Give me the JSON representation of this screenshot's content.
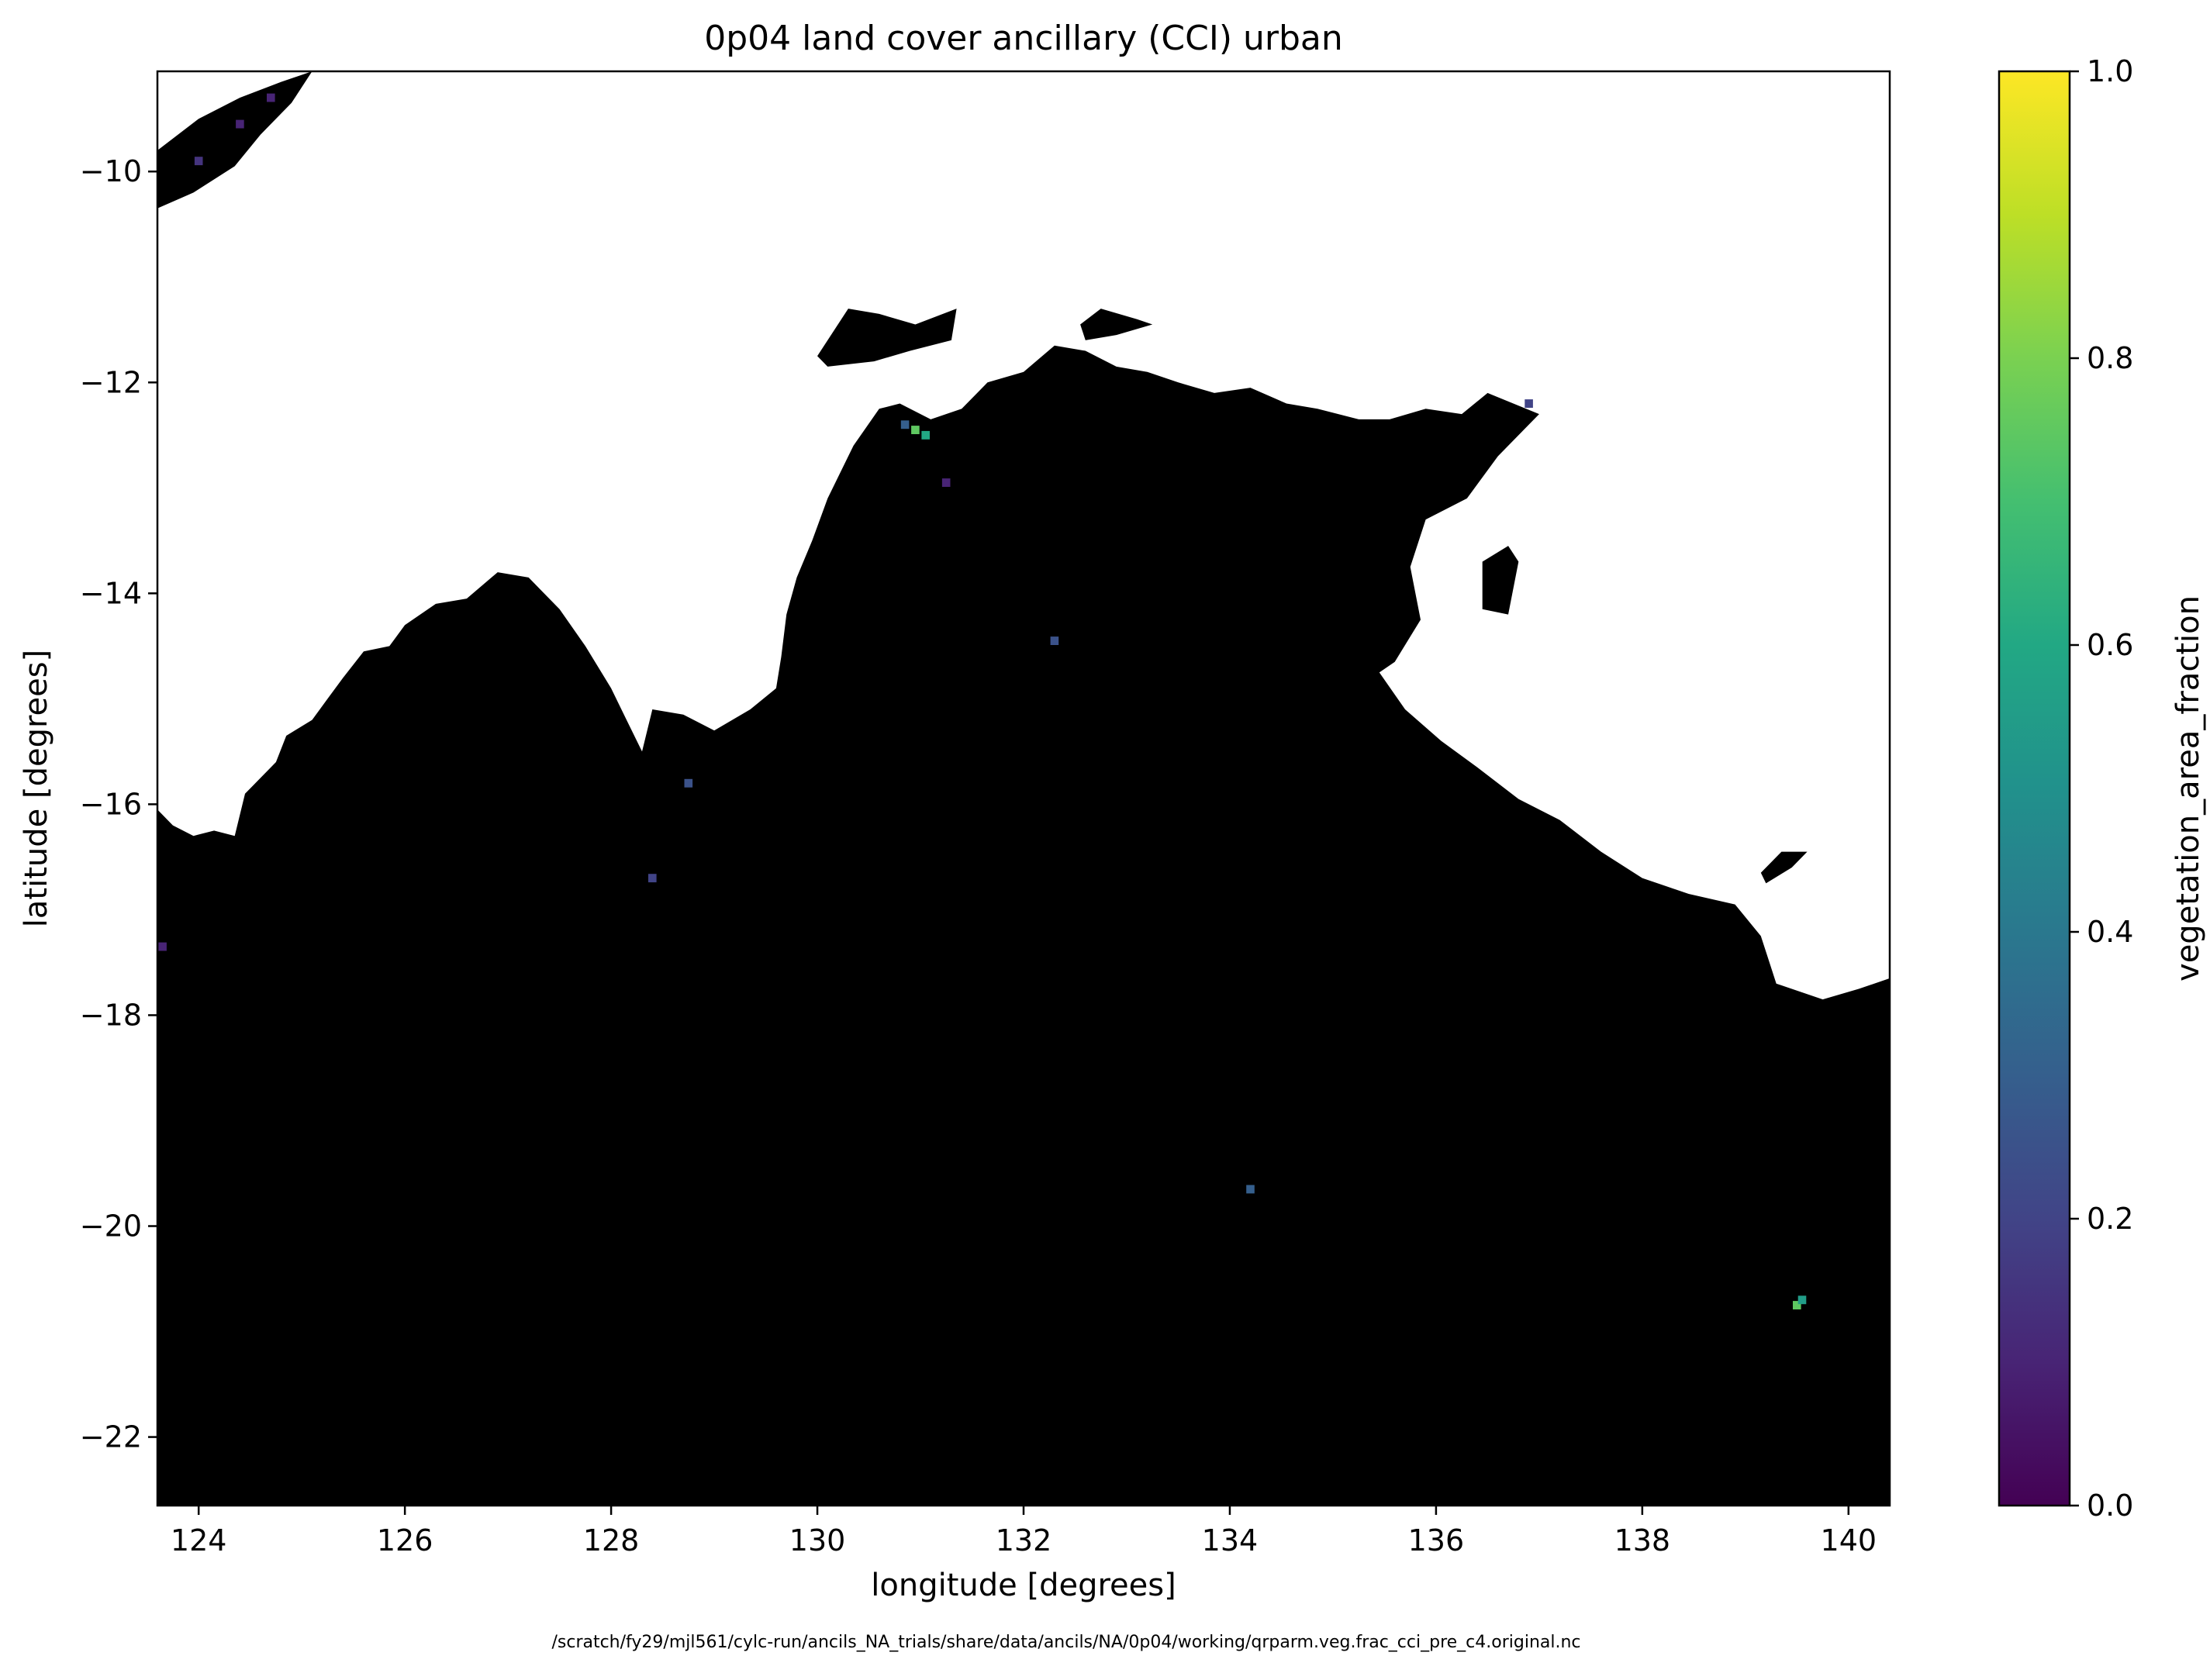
{
  "chart_data": {
    "type": "heatmap",
    "title": "0p04 land cover ancillary (CCI) urban",
    "xlabel": "longitude [degrees]",
    "ylabel": "latitude [degrees]",
    "xlim": [
      123.6,
      140.4
    ],
    "ylim": [
      -22.65,
      -9.05
    ],
    "xticks": [
      124,
      126,
      128,
      130,
      132,
      134,
      136,
      138,
      140
    ],
    "yticks": [
      -10,
      -12,
      -14,
      -16,
      -18,
      -20,
      -22
    ],
    "xtick_labels": [
      "124",
      "126",
      "128",
      "130",
      "132",
      "134",
      "136",
      "138",
      "140"
    ],
    "ytick_labels": [
      "−10",
      "−12",
      "−14",
      "−16",
      "−18",
      "−20",
      "−22"
    ],
    "colorbar": {
      "label": "vegetation_area_fraction",
      "colormap": "viridis",
      "range": [
        0.0,
        1.0
      ],
      "ticks": [
        0.0,
        0.2,
        0.4,
        0.6,
        0.8,
        1.0
      ],
      "tick_labels": [
        "0.0",
        "0.2",
        "0.4",
        "0.6",
        "0.8",
        "1.0"
      ]
    },
    "grid": false,
    "masked_color": "#ffffff",
    "land_color": "#000000",
    "coastline_north": [
      [
        123.6,
        -16.05
      ],
      [
        123.75,
        -16.2
      ],
      [
        123.95,
        -16.3
      ],
      [
        124.15,
        -16.25
      ],
      [
        124.35,
        -16.3
      ],
      [
        124.45,
        -15.9
      ],
      [
        124.75,
        -15.6
      ],
      [
        124.85,
        -15.35
      ],
      [
        125.1,
        -15.2
      ],
      [
        125.25,
        -15.0
      ],
      [
        125.4,
        -14.8
      ],
      [
        125.6,
        -14.55
      ],
      [
        125.85,
        -14.5
      ],
      [
        126.0,
        -14.3
      ],
      [
        126.3,
        -14.1
      ],
      [
        126.6,
        -14.05
      ],
      [
        126.9,
        -13.8
      ],
      [
        127.2,
        -13.85
      ],
      [
        127.5,
        -14.15
      ],
      [
        127.75,
        -14.5
      ],
      [
        128.0,
        -14.9
      ],
      [
        128.15,
        -15.2
      ],
      [
        128.3,
        -15.5
      ],
      [
        128.4,
        -15.1
      ],
      [
        128.7,
        -15.15
      ],
      [
        129.0,
        -15.3
      ],
      [
        129.35,
        -15.1
      ],
      [
        129.6,
        -14.9
      ],
      [
        129.65,
        -14.6
      ],
      [
        129.7,
        -14.2
      ],
      [
        129.8,
        -13.85
      ],
      [
        129.95,
        -13.5
      ],
      [
        130.1,
        -13.1
      ],
      [
        130.35,
        -12.6
      ],
      [
        130.6,
        -12.25
      ],
      [
        130.8,
        -12.2
      ],
      [
        131.1,
        -12.35
      ],
      [
        131.4,
        -12.25
      ],
      [
        131.65,
        -12.0
      ],
      [
        132.0,
        -11.9
      ],
      [
        132.3,
        -11.65
      ],
      [
        132.6,
        -11.7
      ],
      [
        132.9,
        -11.85
      ],
      [
        133.2,
        -11.9
      ],
      [
        133.5,
        -12.0
      ],
      [
        133.85,
        -12.1
      ],
      [
        134.2,
        -12.05
      ],
      [
        134.55,
        -12.2
      ],
      [
        134.85,
        -12.25
      ],
      [
        135.25,
        -12.35
      ],
      [
        135.55,
        -12.35
      ],
      [
        135.9,
        -12.25
      ],
      [
        136.25,
        -12.3
      ],
      [
        136.5,
        -12.1
      ],
      [
        136.75,
        -12.2
      ],
      [
        137.0,
        -12.3
      ],
      [
        136.6,
        -12.7
      ],
      [
        136.3,
        -13.1
      ],
      [
        135.9,
        -13.3
      ],
      [
        135.75,
        -13.75
      ],
      [
        135.85,
        -14.25
      ],
      [
        135.6,
        -14.65
      ],
      [
        135.45,
        -14.75
      ],
      [
        135.7,
        -15.1
      ],
      [
        136.05,
        -15.4
      ],
      [
        136.4,
        -15.65
      ],
      [
        136.8,
        -15.95
      ],
      [
        137.2,
        -16.15
      ],
      [
        137.6,
        -16.45
      ],
      [
        138.0,
        -16.7
      ],
      [
        138.45,
        -16.85
      ],
      [
        138.9,
        -16.95
      ],
      [
        139.15,
        -17.25
      ],
      [
        139.3,
        -17.7
      ],
      [
        139.75,
        -17.85
      ],
      [
        140.1,
        -17.75
      ],
      [
        140.4,
        -17.65
      ]
    ],
    "islands": [
      [
        [
          123.6,
          -9.8
        ],
        [
          124.0,
          -9.5
        ],
        [
          124.4,
          -9.3
        ],
        [
          124.8,
          -9.15
        ],
        [
          125.1,
          -9.05
        ],
        [
          124.9,
          -9.35
        ],
        [
          124.6,
          -9.65
        ],
        [
          124.35,
          -9.95
        ],
        [
          123.95,
          -10.2
        ],
        [
          123.6,
          -10.35
        ]
      ],
      [
        [
          130.0,
          -11.75
        ],
        [
          130.3,
          -11.3
        ],
        [
          130.6,
          -11.35
        ],
        [
          130.95,
          -11.45
        ],
        [
          131.35,
          -11.3
        ],
        [
          131.3,
          -11.6
        ],
        [
          130.9,
          -11.7
        ],
        [
          130.55,
          -11.8
        ],
        [
          130.1,
          -11.85
        ]
      ],
      [
        [
          132.55,
          -11.45
        ],
        [
          132.75,
          -11.3
        ],
        [
          133.1,
          -11.4
        ],
        [
          133.25,
          -11.45
        ],
        [
          132.9,
          -11.55
        ],
        [
          132.6,
          -11.6
        ]
      ],
      [
        [
          136.45,
          -13.7
        ],
        [
          136.7,
          -13.55
        ],
        [
          136.8,
          -13.7
        ],
        [
          136.7,
          -14.2
        ],
        [
          136.45,
          -14.15
        ]
      ],
      [
        [
          139.15,
          -16.65
        ],
        [
          139.35,
          -16.45
        ],
        [
          139.6,
          -16.45
        ],
        [
          139.45,
          -16.6
        ],
        [
          139.2,
          -16.75
        ]
      ]
    ],
    "nonzero_cells": [
      {
        "lon": 130.95,
        "lat": -12.45,
        "value": 0.75
      },
      {
        "lon": 131.05,
        "lat": -12.5,
        "value": 0.6
      },
      {
        "lon": 130.85,
        "lat": -12.4,
        "value": 0.3
      },
      {
        "lon": 132.3,
        "lat": -14.45,
        "value": 0.25
      },
      {
        "lon": 128.75,
        "lat": -15.8,
        "value": 0.25
      },
      {
        "lon": 128.4,
        "lat": -16.7,
        "value": 0.2
      },
      {
        "lon": 134.2,
        "lat": -19.65,
        "value": 0.3
      },
      {
        "lon": 139.5,
        "lat": -20.75,
        "value": 0.75
      },
      {
        "lon": 139.55,
        "lat": -20.7,
        "value": 0.55
      },
      {
        "lon": 136.9,
        "lat": -12.2,
        "value": 0.2
      },
      {
        "lon": 131.25,
        "lat": -12.95,
        "value": 0.1
      },
      {
        "lon": 124.4,
        "lat": -9.55,
        "value": 0.1
      },
      {
        "lon": 124.0,
        "lat": -9.9,
        "value": 0.15
      },
      {
        "lon": 124.7,
        "lat": -9.3,
        "value": 0.1
      },
      {
        "lon": 123.65,
        "lat": -17.35,
        "value": 0.1
      }
    ]
  },
  "footer": {
    "source_path": "/scratch/fy29/mjl561/cylc-run/ancils_NA_trials/share/data/ancils/NA/0p04/working/qrparm.veg.frac_cci_pre_c4.original.nc"
  }
}
